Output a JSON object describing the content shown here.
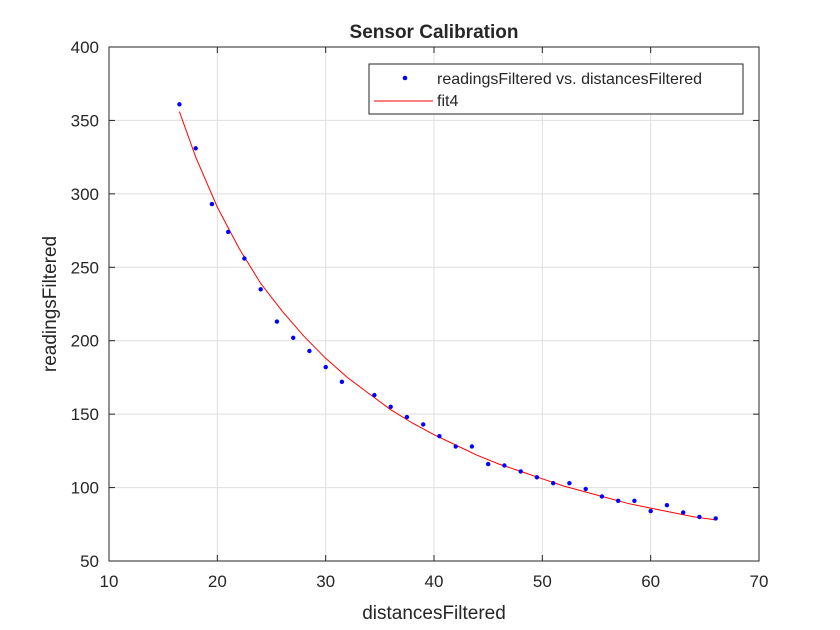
{
  "chart_data": {
    "type": "scatter",
    "title": "Sensor Calibration",
    "xlabel": "distancesFiltered",
    "ylabel": "readingsFiltered",
    "xlim": [
      10,
      70
    ],
    "ylim": [
      50,
      400
    ],
    "xticks": [
      10,
      20,
      30,
      40,
      50,
      60,
      70
    ],
    "yticks": [
      50,
      100,
      150,
      200,
      250,
      300,
      350,
      400
    ],
    "grid": true,
    "legend_position": "top-right",
    "series": [
      {
        "name": "readingsFiltered vs. distancesFiltered",
        "kind": "scatter",
        "color": "#0000ff",
        "points": [
          [
            16.5,
            361
          ],
          [
            18.0,
            331
          ],
          [
            19.5,
            293
          ],
          [
            21.0,
            274
          ],
          [
            22.5,
            256
          ],
          [
            24.0,
            235
          ],
          [
            25.5,
            213
          ],
          [
            27.0,
            202
          ],
          [
            28.5,
            193
          ],
          [
            30.0,
            182
          ],
          [
            31.5,
            172
          ],
          [
            34.5,
            163
          ],
          [
            36.0,
            155
          ],
          [
            37.5,
            148
          ],
          [
            39.0,
            143
          ],
          [
            40.5,
            135
          ],
          [
            42.0,
            128
          ],
          [
            43.5,
            128
          ],
          [
            45.0,
            116
          ],
          [
            46.5,
            115
          ],
          [
            48.0,
            111
          ],
          [
            49.5,
            107
          ],
          [
            51.0,
            103
          ],
          [
            52.5,
            103
          ],
          [
            54.0,
            99
          ],
          [
            55.5,
            94
          ],
          [
            57.0,
            91
          ],
          [
            58.5,
            91
          ],
          [
            60.0,
            84
          ],
          [
            61.5,
            88
          ],
          [
            63.0,
            83
          ],
          [
            64.5,
            80
          ],
          [
            66.0,
            79
          ]
        ]
      },
      {
        "name": "fit4",
        "kind": "line",
        "color": "#ff0000",
        "points": [
          [
            16.5,
            356
          ],
          [
            18,
            325
          ],
          [
            20,
            291
          ],
          [
            22,
            263
          ],
          [
            24,
            239
          ],
          [
            26,
            220
          ],
          [
            28,
            203
          ],
          [
            30,
            188
          ],
          [
            32,
            175
          ],
          [
            34,
            164
          ],
          [
            36,
            153
          ],
          [
            38,
            144
          ],
          [
            40,
            136
          ],
          [
            42,
            129
          ],
          [
            44,
            122
          ],
          [
            46,
            116
          ],
          [
            48,
            111
          ],
          [
            50,
            106
          ],
          [
            52,
            101
          ],
          [
            54,
            97
          ],
          [
            56,
            93
          ],
          [
            58,
            89
          ],
          [
            60,
            86
          ],
          [
            62,
            83
          ],
          [
            64,
            80
          ],
          [
            66,
            78
          ]
        ]
      }
    ]
  }
}
